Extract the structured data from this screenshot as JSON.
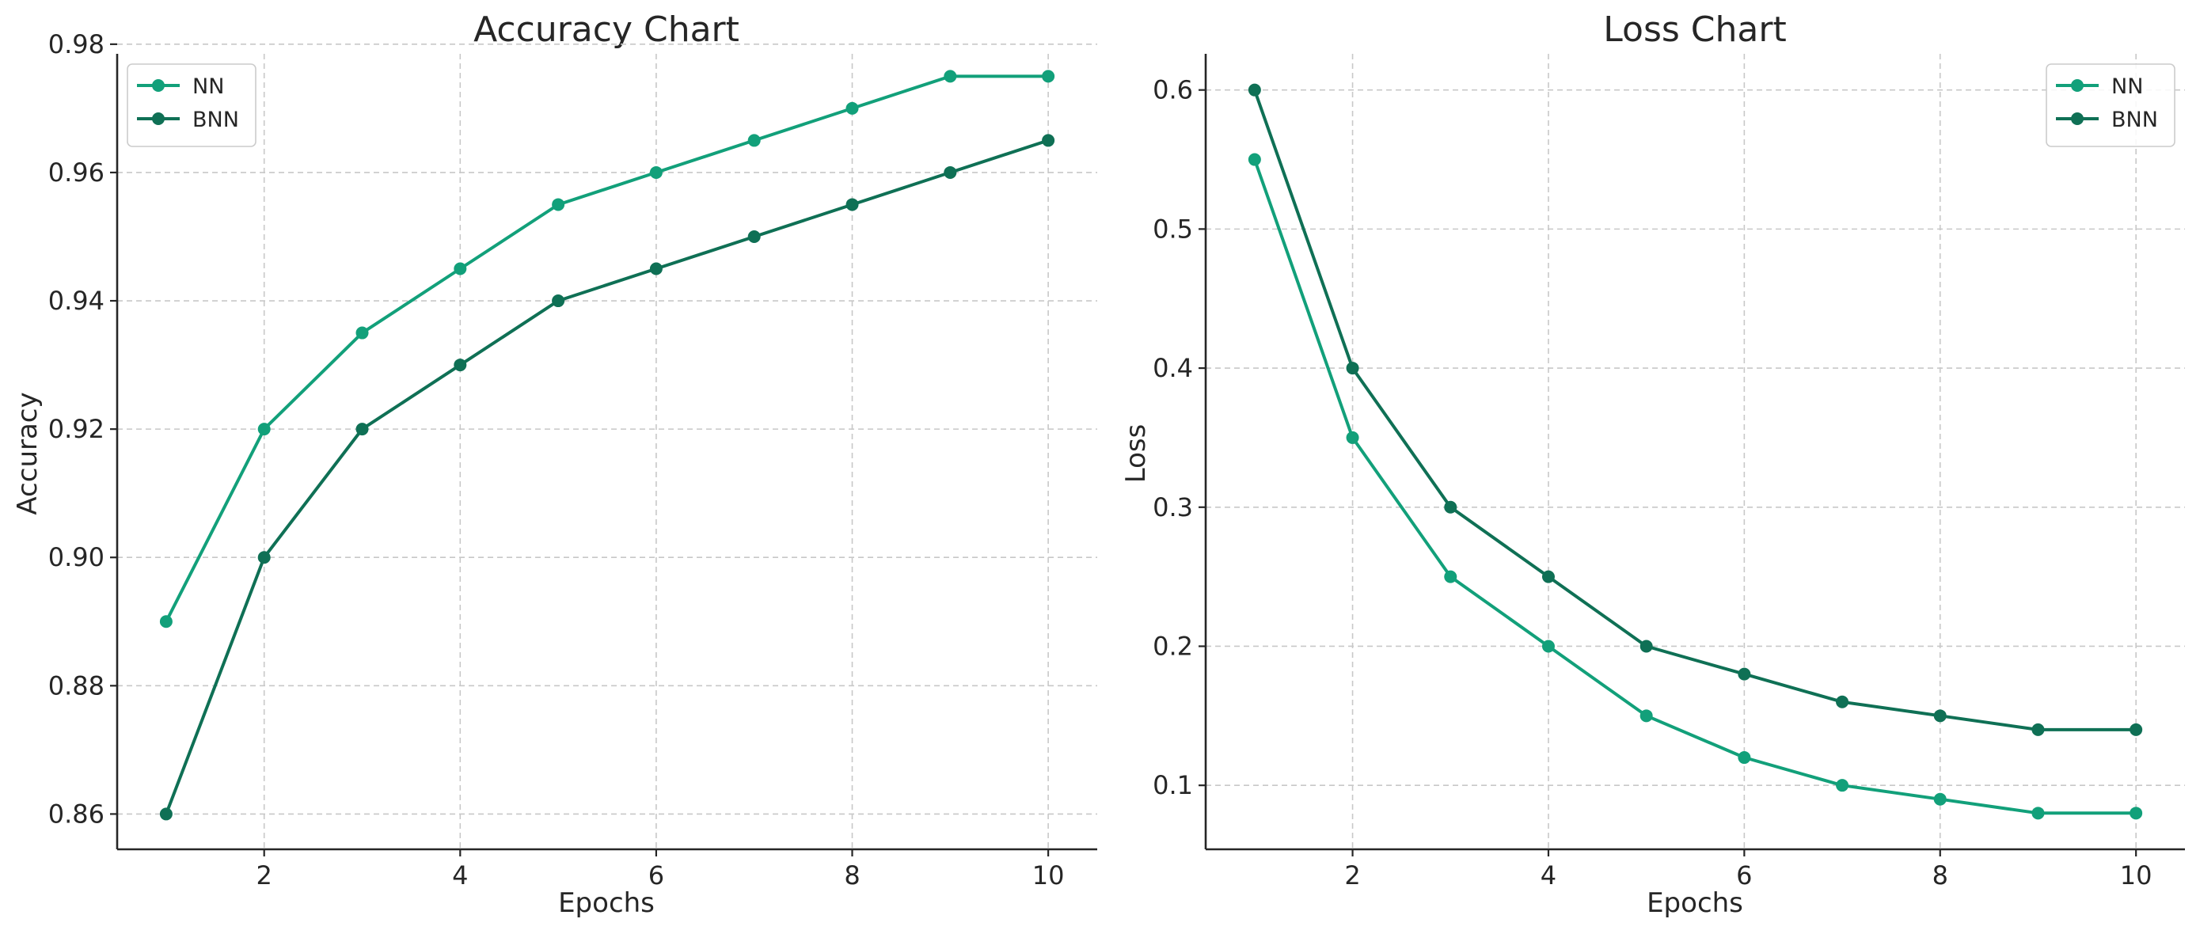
{
  "chart_data": [
    {
      "type": "line",
      "title": "Accuracy Chart",
      "xlabel": "Epochs",
      "ylabel": "Accuracy",
      "x": [
        1,
        2,
        3,
        4,
        5,
        6,
        7,
        8,
        9,
        10
      ],
      "xlim": [
        0.5,
        10.5
      ],
      "ylim": [
        0.8545,
        0.9785
      ],
      "xticks": [
        2,
        4,
        6,
        8,
        10
      ],
      "xtick_labels": [
        "2",
        "4",
        "6",
        "8",
        "10"
      ],
      "yticks": [
        0.86,
        0.88,
        0.9,
        0.92,
        0.94,
        0.96,
        0.98
      ],
      "ytick_labels": [
        "0.86",
        "0.88",
        "0.90",
        "0.92",
        "0.94",
        "0.96",
        "0.98"
      ],
      "grid": true,
      "legend_position": "top-left",
      "series": [
        {
          "name": "NN",
          "color": "#12a07a",
          "values": [
            0.89,
            0.92,
            0.935,
            0.945,
            0.955,
            0.96,
            0.965,
            0.97,
            0.975,
            0.975
          ]
        },
        {
          "name": "BNN",
          "color": "#0f7055",
          "values": [
            0.86,
            0.9,
            0.92,
            0.93,
            0.94,
            0.945,
            0.95,
            0.955,
            0.96,
            0.965
          ]
        }
      ]
    },
    {
      "type": "line",
      "title": "Loss Chart",
      "xlabel": "Epochs",
      "ylabel": "Loss",
      "x": [
        1,
        2,
        3,
        4,
        5,
        6,
        7,
        8,
        9,
        10
      ],
      "xlim": [
        0.5,
        10.5
      ],
      "ylim": [
        0.054,
        0.626
      ],
      "xticks": [
        2,
        4,
        6,
        8,
        10
      ],
      "xtick_labels": [
        "2",
        "4",
        "6",
        "8",
        "10"
      ],
      "yticks": [
        0.1,
        0.2,
        0.3,
        0.4,
        0.5,
        0.6
      ],
      "ytick_labels": [
        "0.1",
        "0.2",
        "0.3",
        "0.4",
        "0.5",
        "0.6"
      ],
      "grid": true,
      "legend_position": "top-right",
      "series": [
        {
          "name": "NN",
          "color": "#12a07a",
          "values": [
            0.55,
            0.35,
            0.25,
            0.2,
            0.15,
            0.12,
            0.1,
            0.09,
            0.08,
            0.08
          ]
        },
        {
          "name": "BNN",
          "color": "#0f7055",
          "values": [
            0.6,
            0.4,
            0.3,
            0.25,
            0.2,
            0.18,
            0.16,
            0.15,
            0.14,
            0.14
          ]
        }
      ]
    }
  ]
}
